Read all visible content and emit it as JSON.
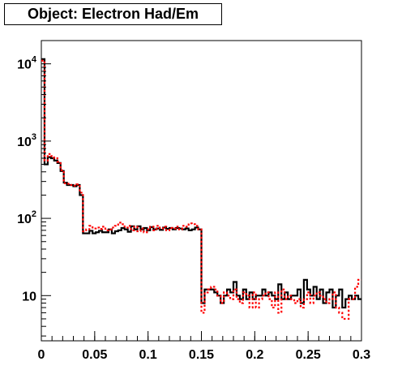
{
  "chart_data": {
    "type": "line",
    "title": "Object: Electron Had/Em",
    "xlabel": "",
    "ylabel": "",
    "xlim": [
      0,
      0.3
    ],
    "ylim": [
      2.6,
      20000
    ],
    "yscale": "log",
    "grid": false,
    "x_ticks": [
      0,
      0.05,
      0.1,
      0.15,
      0.2,
      0.25,
      0.3
    ],
    "x_tick_labels": [
      "0",
      "0.05",
      "0.1",
      "0.15",
      "0.2",
      "0.25",
      "0.3"
    ],
    "y_ticks": [
      10,
      100,
      1000,
      10000
    ],
    "y_tick_labels": [
      {
        "base": "10",
        "exp": ""
      },
      {
        "base": "10",
        "exp": "2"
      },
      {
        "base": "10",
        "exp": "3"
      },
      {
        "base": "10",
        "exp": "4"
      }
    ],
    "bin_width": 0.003,
    "series": [
      {
        "color": "#000000",
        "style": "solid",
        "values": [
          11500,
          500,
          620,
          600,
          560,
          520,
          410,
          290,
          270,
          270,
          260,
          270,
          200,
          64,
          64,
          69,
          64,
          66,
          69,
          66,
          66,
          72,
          64,
          68,
          70,
          75,
          72,
          67,
          79,
          72,
          79,
          72,
          75,
          70,
          77,
          72,
          74,
          71,
          76,
          73,
          75,
          72,
          75,
          74,
          72,
          74,
          70,
          72,
          76,
          72,
          8,
          12,
          12,
          12,
          11,
          10,
          8,
          10,
          12,
          11,
          15,
          10,
          9,
          12,
          9,
          11,
          9,
          10,
          10,
          12,
          10,
          11,
          10,
          9,
          14,
          9,
          11,
          9,
          10,
          10,
          12,
          8,
          16,
          12,
          10,
          13,
          9,
          12,
          8,
          11,
          12,
          7,
          10,
          12,
          7,
          9,
          10,
          9,
          10,
          9
        ]
      },
      {
        "color": "#ff0000",
        "style": "dotted",
        "values": [
          11000,
          560,
          680,
          640,
          600,
          540,
          420,
          285,
          280,
          270,
          265,
          275,
          215,
          68,
          72,
          80,
          74,
          76,
          73,
          78,
          70,
          72,
          76,
          80,
          88,
          84,
          76,
          80,
          70,
          78,
          68,
          74,
          66,
          72,
          78,
          70,
          80,
          74,
          78,
          70,
          75,
          74,
          78,
          72,
          80,
          78,
          86,
          84,
          80,
          72,
          6,
          11,
          12,
          13,
          12,
          10,
          8,
          11,
          10,
          9,
          12,
          9,
          8,
          11,
          10,
          7,
          11,
          7,
          9,
          10,
          11,
          9,
          7,
          11,
          6,
          12,
          9,
          10,
          9,
          8,
          9,
          7,
          9,
          11,
          8,
          10,
          11,
          10,
          9,
          8,
          9,
          11,
          7,
          6,
          5,
          5,
          9,
          9,
          13,
          16
        ]
      }
    ]
  }
}
